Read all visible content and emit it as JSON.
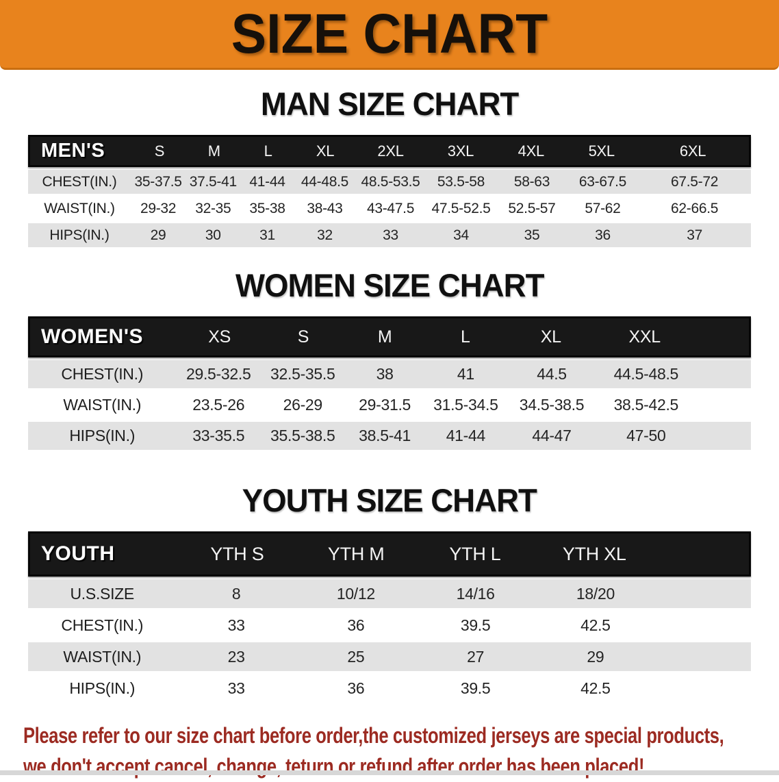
{
  "banner": {
    "title": "SIZE CHART",
    "background_color": "#E8831D",
    "text_color": "#16100A"
  },
  "chart_data": [
    {
      "type": "table",
      "title": "MAN SIZE CHART",
      "header": [
        "MEN'S",
        "S",
        "M",
        "L",
        "XL",
        "2XL",
        "3XL",
        "4XL",
        "5XL",
        "6XL"
      ],
      "rows": [
        [
          "CHEST(IN.)",
          "35-37.5",
          "37.5-41",
          "41-44",
          "44-48.5",
          "48.5-53.5",
          "53.5-58",
          "58-63",
          "63-67.5",
          "67.5-72"
        ],
        [
          "WAIST(IN.)",
          "29-32",
          "32-35",
          "35-38",
          "38-43",
          "43-47.5",
          "47.5-52.5",
          "52.5-57",
          "57-62",
          "62-66.5"
        ],
        [
          "HIPS(IN.)",
          "29",
          "30",
          "31",
          "32",
          "33",
          "34",
          "35",
          "36",
          "37"
        ]
      ],
      "header_bg": "#181818",
      "header_text_color": "#FFFFFF",
      "alt_row_bg": "#E2E2E2"
    },
    {
      "type": "table",
      "title": "WOMEN SIZE CHART",
      "header": [
        "WOMEN'S",
        "XS",
        "S",
        "M",
        "L",
        "XL",
        "XXL"
      ],
      "rows": [
        [
          "CHEST(IN.)",
          "29.5-32.5",
          "32.5-35.5",
          "38",
          "41",
          "44.5",
          "44.5-48.5"
        ],
        [
          "WAIST(IN.)",
          "23.5-26",
          "26-29",
          "29-31.5",
          "31.5-34.5",
          "34.5-38.5",
          "38.5-42.5"
        ],
        [
          "HIPS(IN.)",
          "33-35.5",
          "35.5-38.5",
          "38.5-41",
          "41-44",
          "44-47",
          "47-50"
        ]
      ],
      "header_bg": "#181818",
      "header_text_color": "#FFFFFF",
      "alt_row_bg": "#E2E2E2"
    },
    {
      "type": "table",
      "title": "YOUTH SIZE CHART",
      "header": [
        "YOUTH",
        "YTH S",
        "YTH M",
        "YTH L",
        "YTH XL"
      ],
      "rows": [
        [
          "U.S.SIZE",
          "8",
          "10/12",
          "14/16",
          "18/20"
        ],
        [
          "CHEST(IN.)",
          "33",
          "36",
          "39.5",
          "42.5"
        ],
        [
          "WAIST(IN.)",
          "23",
          "25",
          "27",
          "29"
        ],
        [
          "HIPS(IN.)",
          "33",
          "36",
          "39.5",
          "42.5"
        ]
      ],
      "header_bg": "#181818",
      "header_text_color": "#FFFFFF",
      "alt_row_bg": "#E2E2E2"
    }
  ],
  "disclaimer": {
    "line1": "Please refer to our size chart before order,the customized jerseys are special products,",
    "line2": "we don't accept cancel, change, teturn or refund after order has been placed!",
    "color": "#9C2B22"
  }
}
